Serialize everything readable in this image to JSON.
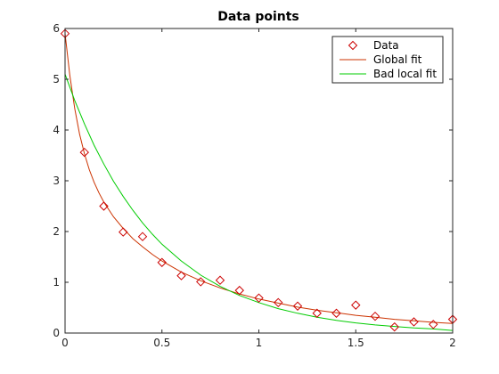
{
  "chart_data": {
    "type": "line",
    "title": "Data points",
    "xlabel": "",
    "ylabel": "",
    "xlim": [
      0,
      2
    ],
    "ylim": [
      0,
      6
    ],
    "xticks": [
      0,
      0.5,
      1,
      1.5,
      2
    ],
    "xtick_labels": [
      "0",
      "0.5",
      "1",
      "1.5",
      "2"
    ],
    "yticks": [
      0,
      1,
      2,
      3,
      4,
      5,
      6
    ],
    "ytick_labels": [
      "0",
      "1",
      "2",
      "3",
      "4",
      "5",
      "6"
    ],
    "grid": false,
    "legend_position": "top-right",
    "series": [
      {
        "name": "Data",
        "kind": "markers",
        "marker": "diamond",
        "color": "#cc0000",
        "x": [
          0,
          0.1,
          0.2,
          0.3,
          0.4,
          0.5,
          0.6,
          0.7,
          0.8,
          0.9,
          1.0,
          1.1,
          1.2,
          1.3,
          1.4,
          1.5,
          1.6,
          1.7,
          1.8,
          1.9,
          2.0
        ],
        "y": [
          5.9,
          3.56,
          2.5,
          1.99,
          1.9,
          1.39,
          1.13,
          1.01,
          1.04,
          0.84,
          0.69,
          0.6,
          0.53,
          0.39,
          0.39,
          0.55,
          0.33,
          0.12,
          0.22,
          0.17,
          0.27
        ]
      },
      {
        "name": "Global fit",
        "kind": "line",
        "color": "#cc3300",
        "x": [
          0,
          0.025,
          0.05,
          0.075,
          0.1,
          0.125,
          0.15,
          0.175,
          0.2,
          0.25,
          0.3,
          0.35,
          0.4,
          0.45,
          0.5,
          0.55,
          0.6,
          0.7,
          0.8,
          0.9,
          1.0,
          1.1,
          1.2,
          1.3,
          1.4,
          1.5,
          1.6,
          1.7,
          1.8,
          1.9,
          2.0
        ],
        "y": [
          5.9,
          5.07,
          4.42,
          3.92,
          3.53,
          3.22,
          2.97,
          2.76,
          2.58,
          2.29,
          2.06,
          1.86,
          1.7,
          1.55,
          1.42,
          1.31,
          1.2,
          1.03,
          0.89,
          0.77,
          0.67,
          0.59,
          0.51,
          0.45,
          0.4,
          0.35,
          0.31,
          0.27,
          0.24,
          0.21,
          0.19
        ]
      },
      {
        "name": "Bad local fit",
        "kind": "line",
        "color": "#00cc00",
        "x": [
          0,
          0.05,
          0.1,
          0.15,
          0.2,
          0.25,
          0.3,
          0.35,
          0.4,
          0.45,
          0.5,
          0.6,
          0.7,
          0.8,
          0.9,
          1.0,
          1.1,
          1.2,
          1.3,
          1.4,
          1.5,
          1.6,
          1.7,
          1.8,
          1.9,
          2.0
        ],
        "y": [
          5.1,
          4.58,
          4.12,
          3.7,
          3.33,
          2.99,
          2.69,
          2.42,
          2.17,
          1.95,
          1.75,
          1.42,
          1.14,
          0.92,
          0.74,
          0.6,
          0.48,
          0.39,
          0.31,
          0.25,
          0.2,
          0.16,
          0.13,
          0.1,
          0.08,
          0.05
        ]
      }
    ]
  }
}
